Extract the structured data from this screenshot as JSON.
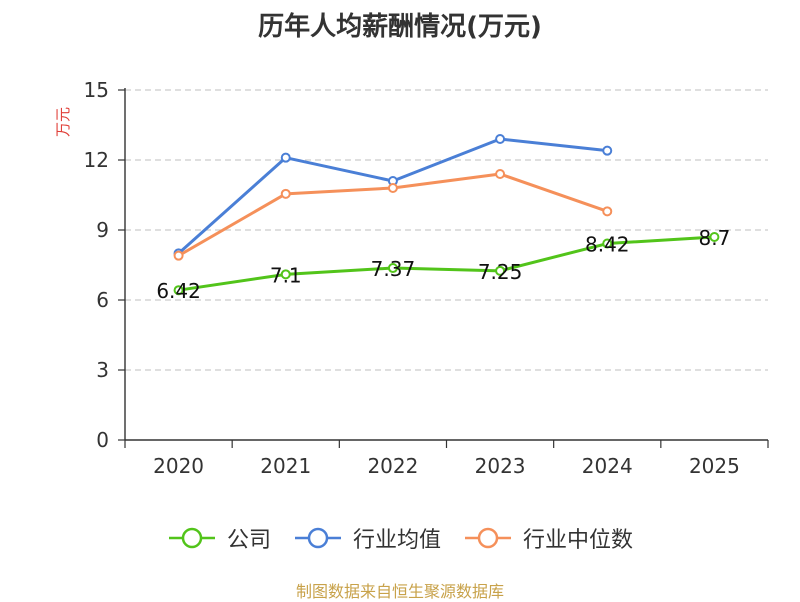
{
  "chart_data": {
    "type": "line",
    "title": "历年人均薪酬情况(万元)",
    "ylabel": "万元",
    "xlabel": "",
    "categories": [
      "2020",
      "2021",
      "2022",
      "2023",
      "2024",
      "2025"
    ],
    "ylim": [
      0,
      15
    ],
    "yticks": [
      0,
      3,
      6,
      9,
      12,
      15
    ],
    "grid": true,
    "legend_position": "bottom",
    "series": [
      {
        "name": "公司",
        "color": "#52c41a",
        "values": [
          6.42,
          7.1,
          7.37,
          7.25,
          8.42,
          8.7
        ],
        "data_labels": [
          "6.42",
          "7.1",
          "7.37",
          "7.25",
          "8.42",
          "8.7"
        ]
      },
      {
        "name": "行业均值",
        "color": "#4a7fd6",
        "values": [
          8.0,
          12.1,
          11.1,
          12.9,
          12.4,
          null
        ]
      },
      {
        "name": "行业中位数",
        "color": "#f5905a",
        "values": [
          7.9,
          10.55,
          10.8,
          11.4,
          9.8,
          null
        ]
      }
    ]
  },
  "source_note": "制图数据来自恒生聚源数据库",
  "colors": {
    "axis_label": "#e0403a",
    "grid": "#cccccc",
    "source": "#c8a24a"
  }
}
